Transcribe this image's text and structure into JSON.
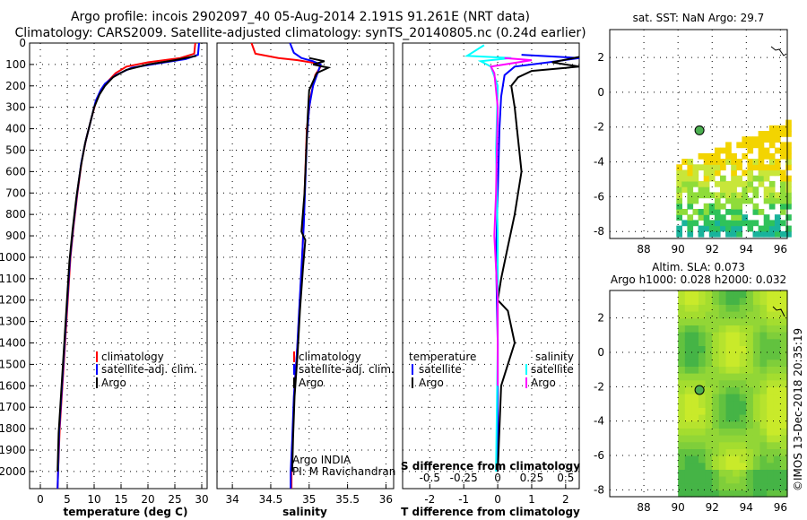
{
  "header": {
    "title_line1": "Argo profile: incois 2902097_40 05-Aug-2014 2.191S 91.261E (NRT data)",
    "title_line2": "Climatology: CARS2009. Satellite-adjusted climatology: synTS_20140805.nc (0.24d earlier)"
  },
  "chart_data": [
    {
      "type": "line",
      "id": "temperature",
      "xlabel": "temperature (deg C)",
      "ylabel": "",
      "xlim": [
        -2,
        31
      ],
      "ylim": [
        2080,
        0
      ],
      "xticks": [
        "0",
        "5",
        "10",
        "15",
        "20",
        "25",
        "30"
      ],
      "yticks": [
        "0",
        "100",
        "200",
        "300",
        "400",
        "500",
        "600",
        "700",
        "800",
        "900",
        "1000",
        "1100",
        "1200",
        "1300",
        "1400",
        "1500",
        "1600",
        "1700",
        "1800",
        "1900",
        "2000"
      ],
      "legend": [
        "climatology",
        "satellite-adj. clim.",
        "Argo"
      ],
      "series": [
        {
          "name": "climatology",
          "color": "#ff0000",
          "points": [
            [
              28.8,
              0
            ],
            [
              28.6,
              50
            ],
            [
              26,
              70
            ],
            [
              20,
              90
            ],
            [
              16,
              110
            ],
            [
              14,
              140
            ],
            [
              12.5,
              180
            ],
            [
              11.5,
              210
            ],
            [
              10.5,
              260
            ],
            [
              9.5,
              350
            ],
            [
              8.5,
              450
            ],
            [
              7.7,
              550
            ],
            [
              6.9,
              700
            ],
            [
              6.2,
              850
            ],
            [
              5.6,
              1000
            ],
            [
              5.1,
              1200
            ],
            [
              4.6,
              1400
            ],
            [
              4.1,
              1600
            ],
            [
              3.6,
              1800
            ],
            [
              3.3,
              2000
            ],
            [
              3.2,
              2080
            ]
          ]
        },
        {
          "name": "satellite-adj. clim.",
          "color": "#0000ff",
          "points": [
            [
              29.5,
              0
            ],
            [
              29.3,
              55
            ],
            [
              27,
              75
            ],
            [
              22,
              95
            ],
            [
              17,
              115
            ],
            [
              14,
              150
            ],
            [
              12,
              190
            ],
            [
              11.2,
              220
            ],
            [
              10.3,
              270
            ],
            [
              9.4,
              360
            ],
            [
              8.4,
              460
            ],
            [
              7.6,
              560
            ],
            [
              6.8,
              710
            ],
            [
              6.1,
              860
            ],
            [
              5.5,
              1010
            ],
            [
              5.0,
              1210
            ],
            [
              4.5,
              1410
            ],
            [
              4.0,
              1610
            ],
            [
              3.5,
              1810
            ],
            [
              3.3,
              2000
            ],
            [
              3.2,
              2080
            ]
          ]
        },
        {
          "name": "Argo",
          "color": "#000000",
          "points": [
            [
              29.0,
              60
            ],
            [
              25,
              80
            ],
            [
              20,
              100
            ],
            [
              16,
              125
            ],
            [
              13.5,
              160
            ],
            [
              12,
              200
            ],
            [
              11,
              240
            ],
            [
              10,
              300
            ],
            [
              9.2,
              380
            ],
            [
              8.3,
              470
            ],
            [
              7.5,
              580
            ],
            [
              6.7,
              720
            ],
            [
              6.0,
              870
            ],
            [
              5.4,
              1020
            ],
            [
              4.9,
              1220
            ],
            [
              4.4,
              1420
            ],
            [
              3.9,
              1620
            ],
            [
              3.4,
              1820
            ],
            [
              3.2,
              2000
            ]
          ]
        }
      ]
    },
    {
      "type": "line",
      "id": "salinity",
      "xlabel": "salinity",
      "xlim": [
        33.8,
        36.1
      ],
      "ylim": [
        2080,
        0
      ],
      "xticks": [
        "34",
        "34.5",
        "35",
        "35.5",
        "36"
      ],
      "legend": [
        "climatology",
        "satellite-adj. clim.",
        "Argo"
      ],
      "annotation_line1": "Argo INDIA",
      "annotation_line2": "PI: M Ravichandran",
      "series": [
        {
          "name": "climatology",
          "color": "#ff0000",
          "points": [
            [
              34.25,
              0
            ],
            [
              34.3,
              50
            ],
            [
              34.6,
              70
            ],
            [
              34.85,
              80
            ],
            [
              35.1,
              95
            ],
            [
              35.15,
              110
            ],
            [
              35.08,
              150
            ],
            [
              35.02,
              250
            ],
            [
              34.97,
              400
            ],
            [
              34.95,
              600
            ],
            [
              34.93,
              800
            ],
            [
              34.91,
              1000
            ],
            [
              34.88,
              1200
            ],
            [
              34.85,
              1400
            ],
            [
              34.81,
              1600
            ],
            [
              34.79,
              1800
            ],
            [
              34.77,
              2000
            ],
            [
              34.77,
              2080
            ]
          ]
        },
        {
          "name": "satellite-adj. clim.",
          "color": "#0000ff",
          "points": [
            [
              34.75,
              0
            ],
            [
              34.8,
              45
            ],
            [
              34.9,
              70
            ],
            [
              35.05,
              85
            ],
            [
              35.15,
              100
            ],
            [
              35.12,
              130
            ],
            [
              35.05,
              200
            ],
            [
              35.0,
              300
            ],
            [
              34.97,
              450
            ],
            [
              34.95,
              650
            ],
            [
              34.93,
              850
            ],
            [
              34.9,
              1050
            ],
            [
              34.87,
              1250
            ],
            [
              34.84,
              1450
            ],
            [
              34.8,
              1650
            ],
            [
              34.78,
              1850
            ],
            [
              34.76,
              2000
            ],
            [
              34.76,
              2080
            ]
          ]
        },
        {
          "name": "Argo",
          "color": "#000000",
          "points": [
            [
              35.0,
              70
            ],
            [
              35.2,
              85
            ],
            [
              35.05,
              100
            ],
            [
              35.25,
              115
            ],
            [
              35.1,
              140
            ],
            [
              35.0,
              220
            ],
            [
              34.98,
              350
            ],
            [
              34.96,
              520
            ],
            [
              34.94,
              700
            ],
            [
              34.9,
              880
            ],
            [
              34.95,
              920
            ],
            [
              34.92,
              1050
            ],
            [
              34.88,
              1250
            ],
            [
              34.85,
              1450
            ],
            [
              34.81,
              1650
            ],
            [
              34.79,
              1850
            ],
            [
              34.78,
              2000
            ]
          ]
        }
      ]
    },
    {
      "type": "line",
      "id": "differences",
      "xlabel": "T difference from climatology",
      "xlim": [
        -2.8,
        2.4
      ],
      "ylim": [
        2080,
        0
      ],
      "xticks": [
        "-2",
        "-1",
        "0",
        "1",
        "2"
      ],
      "xlabel_top": "S difference from climatology",
      "xticks_top": [
        "-0.5",
        "-0.25",
        "0",
        "0.25",
        "0.5"
      ],
      "legend_temperature_title": "temperature",
      "legend_salinity_title": "salinity",
      "legend_temperature": [
        "satellite",
        "Argo"
      ],
      "legend_salinity": [
        "satellite",
        "Argo"
      ],
      "series": [
        {
          "name": "T satellite",
          "color": "#0000ff",
          "points": [
            [
              0.7,
              55
            ],
            [
              2.4,
              70
            ],
            [
              1.5,
              90
            ],
            [
              0.5,
              110
            ],
            [
              0.2,
              150
            ],
            [
              0.1,
              250
            ],
            [
              0.05,
              400
            ],
            [
              0.0,
              700
            ],
            [
              -0.05,
              1000
            ],
            [
              0.0,
              1400
            ],
            [
              0.0,
              2000
            ]
          ]
        },
        {
          "name": "T Argo",
          "color": "#000000",
          "points": [
            [
              2.4,
              65
            ],
            [
              1.6,
              90
            ],
            [
              2.4,
              110
            ],
            [
              1.0,
              130
            ],
            [
              0.6,
              160
            ],
            [
              0.4,
              200
            ],
            [
              0.5,
              300
            ],
            [
              0.6,
              450
            ],
            [
              0.7,
              600
            ],
            [
              0.5,
              800
            ],
            [
              0.3,
              950
            ],
            [
              0.1,
              1100
            ],
            [
              0.0,
              1200
            ],
            [
              0.3,
              1250
            ],
            [
              0.5,
              1400
            ],
            [
              0.3,
              1500
            ],
            [
              0.1,
              1600
            ],
            [
              0.05,
              1800
            ],
            [
              0.0,
              2000
            ]
          ]
        },
        {
          "name": "S satellite",
          "color": "#00ffff",
          "points": [
            [
              -0.4,
              10
            ],
            [
              -0.9,
              60
            ],
            [
              0.4,
              70
            ],
            [
              -0.5,
              85
            ],
            [
              -0.2,
              110
            ],
            [
              0.0,
              200
            ],
            [
              -0.05,
              500
            ],
            [
              0.0,
              900
            ],
            [
              0.0,
              1400
            ],
            [
              -0.05,
              2000
            ]
          ]
        },
        {
          "name": "S Argo",
          "color": "#ff00ff",
          "points": [
            [
              0.2,
              70
            ],
            [
              1.0,
              80
            ],
            [
              -0.2,
              110
            ],
            [
              -0.1,
              140
            ],
            [
              0.0,
              300
            ],
            [
              -0.05,
              700
            ],
            [
              -0.1,
              900
            ],
            [
              0.0,
              1200
            ],
            [
              0.0,
              1600
            ]
          ]
        }
      ]
    },
    {
      "type": "heatmap",
      "id": "sst_map",
      "title": "sat. SST: NaN Argo: 29.7",
      "xlim": [
        86,
        96.4
      ],
      "ylim": [
        -8.4,
        3.6
      ],
      "xticks": [
        "88",
        "90",
        "92",
        "94",
        "96"
      ],
      "yticks": [
        "2",
        "0",
        "-2",
        "-4",
        "-6",
        "-8"
      ],
      "argo_position": [
        91.26,
        -2.19
      ]
    },
    {
      "type": "heatmap",
      "id": "sla_map",
      "title_line1": "Altim. SLA: 0.073",
      "title_line2": "Argo h1000: 0.028 h2000: 0.032",
      "xlim": [
        86,
        96.4
      ],
      "ylim": [
        -8.4,
        3.6
      ],
      "xticks": [
        "88",
        "90",
        "92",
        "94",
        "96"
      ],
      "yticks": [
        "2",
        "0",
        "-2",
        "-4",
        "-6",
        "-8"
      ],
      "argo_position": [
        91.26,
        -2.19
      ]
    }
  ],
  "footer": {
    "credit": "©IMOS 13-Dec-2018 20:35:19"
  },
  "colors": {
    "climatology": "#ff0000",
    "satellite": "#0000ff",
    "argo": "#000000",
    "s_satellite": "#00ffff",
    "s_argo": "#ff00ff"
  }
}
